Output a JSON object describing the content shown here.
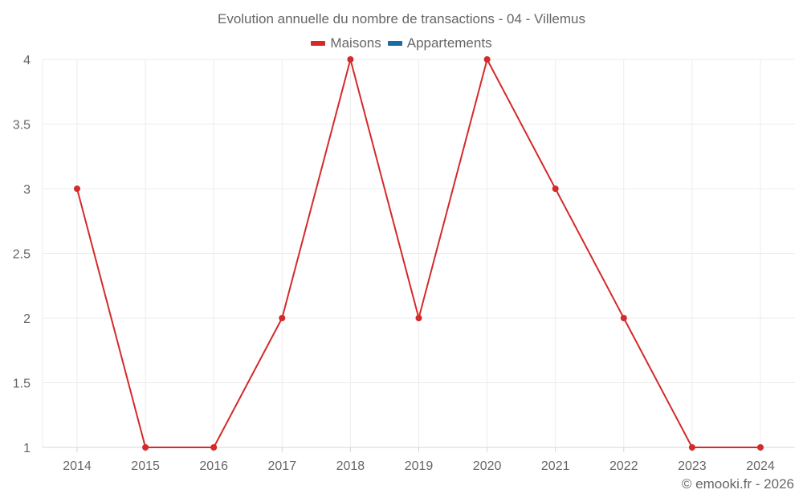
{
  "title": "Evolution annuelle du nombre de transactions - 04 - Villemus",
  "legend": [
    {
      "label": "Maisons",
      "color": "#d42a2a"
    },
    {
      "label": "Appartements",
      "color": "#1a6aa5"
    }
  ],
  "credit": "© emooki.fr - 2026",
  "chart_data": {
    "type": "line",
    "title": "Evolution annuelle du nombre de transactions - 04 - Villemus",
    "xlabel": "",
    "ylabel": "",
    "categories": [
      "2014",
      "2015",
      "2016",
      "2017",
      "2018",
      "2019",
      "2020",
      "2021",
      "2022",
      "2023",
      "2024"
    ],
    "series": [
      {
        "name": "Maisons",
        "color": "#d42a2a",
        "values": [
          3,
          1,
          1,
          2,
          4,
          2,
          4,
          3,
          2,
          1,
          1
        ]
      },
      {
        "name": "Appartements",
        "color": "#1a6aa5",
        "values": []
      }
    ],
    "yticks": [
      "1",
      "1.5",
      "2",
      "2.5",
      "3",
      "3.5",
      "4"
    ],
    "ylim": [
      1,
      4
    ],
    "grid": true,
    "legend_position": "top"
  }
}
